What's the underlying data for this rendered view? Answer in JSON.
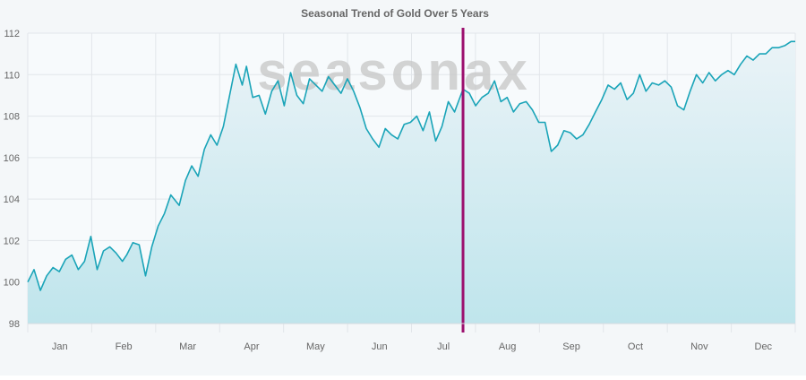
{
  "chart_data": {
    "type": "area",
    "title": "Seasonal Trend of Gold Over 5 Years",
    "watermark": "seasonax",
    "xlabel": "",
    "ylabel": "",
    "ylim": [
      98,
      112
    ],
    "yticks": [
      98,
      100,
      102,
      104,
      106,
      108,
      110,
      112
    ],
    "categories": [
      "Jan",
      "Feb",
      "Mar",
      "Apr",
      "May",
      "Jun",
      "Jul",
      "Aug",
      "Sep",
      "Oct",
      "Nov",
      "Dec"
    ],
    "grid": true,
    "marker_day": 207,
    "colors": {
      "line": "#1aa4b8",
      "fill_top": "#eaf3f7",
      "fill_bottom": "#bfe5ec",
      "marker": "#9c0f6e",
      "grid": "#e2e6ea"
    },
    "series": [
      {
        "x_unit": "day_of_year",
        "x": [
          0,
          3,
          6,
          9,
          12,
          15,
          18,
          21,
          24,
          27,
          30,
          33,
          36,
          39,
          42,
          45,
          47,
          50,
          53,
          56,
          59,
          62,
          65,
          68,
          72,
          75,
          78,
          81,
          84,
          87,
          90,
          93,
          96,
          99,
          102,
          104,
          107,
          110,
          113,
          116,
          119,
          122,
          125,
          128,
          131,
          134,
          137,
          140,
          143,
          146,
          149,
          152,
          155,
          158,
          161,
          164,
          167,
          170,
          173,
          176,
          179,
          182,
          185,
          188,
          191,
          194,
          197,
          200,
          203,
          207,
          210,
          213,
          216,
          219,
          222,
          225,
          228,
          231,
          234,
          237,
          240,
          243,
          246,
          249,
          252,
          255,
          258,
          261,
          264,
          267,
          270,
          273,
          276,
          279,
          282,
          285,
          288,
          291,
          294,
          297,
          300,
          303,
          306,
          309,
          312,
          315,
          318,
          321,
          324,
          327,
          330,
          333,
          336,
          339,
          342,
          345,
          348,
          351,
          354,
          357,
          360,
          363,
          365
        ],
        "values": [
          100.0,
          100.6,
          99.6,
          100.3,
          100.7,
          100.5,
          101.1,
          101.3,
          100.6,
          101.0,
          102.2,
          100.6,
          101.5,
          101.7,
          101.4,
          101.0,
          101.3,
          101.9,
          101.8,
          100.3,
          101.7,
          102.7,
          103.3,
          104.2,
          103.7,
          104.9,
          105.6,
          105.1,
          106.4,
          107.1,
          106.6,
          107.5,
          109.0,
          110.5,
          109.5,
          110.4,
          108.9,
          109.0,
          108.1,
          109.2,
          109.7,
          108.5,
          110.1,
          109.0,
          108.6,
          109.8,
          109.5,
          109.2,
          109.9,
          109.5,
          109.1,
          109.8,
          109.2,
          108.4,
          107.4,
          106.9,
          106.5,
          107.4,
          107.1,
          106.9,
          107.6,
          107.7,
          108.0,
          107.3,
          108.2,
          106.8,
          107.5,
          108.7,
          108.2,
          109.3,
          109.1,
          108.5,
          108.9,
          109.1,
          109.7,
          108.7,
          108.9,
          108.2,
          108.6,
          108.7,
          108.3,
          107.7,
          107.7,
          106.3,
          106.6,
          107.3,
          107.2,
          106.9,
          107.1,
          107.6,
          108.2,
          108.8,
          109.5,
          109.3,
          109.6,
          108.8,
          109.1,
          110.0,
          109.2,
          109.6,
          109.5,
          109.7,
          109.4,
          108.5,
          108.3,
          109.2,
          110.0,
          109.6,
          110.1,
          109.7,
          110.0,
          110.2,
          110.0,
          110.5,
          110.9,
          110.7,
          111.0,
          111.0,
          111.3,
          111.3,
          111.4,
          111.6,
          111.6
        ]
      }
    ]
  }
}
